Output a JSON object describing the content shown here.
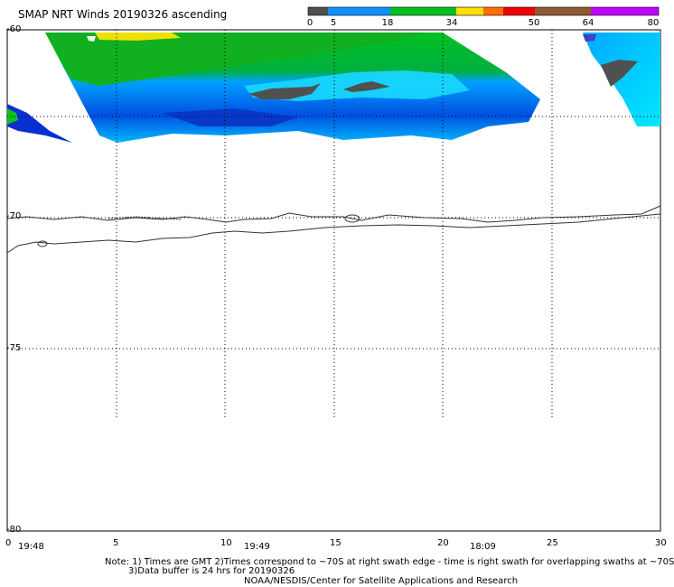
{
  "title": "SMAP NRT Winds 20190326 ascending",
  "scale": {
    "labels": [
      "0",
      "5",
      "18",
      "34",
      "50",
      "64",
      "80"
    ],
    "colors": [
      "#505050",
      "#707070",
      "#00a0ff",
      "#00d000",
      "#ffff00",
      "#ff6000",
      "#ff0000",
      "#806040",
      "#ff00ff",
      "#8000ff"
    ]
  },
  "lat_labels": [
    "-60",
    "-70",
    "-75",
    "-80"
  ],
  "lon_labels": [
    "0",
    "5",
    "10",
    "15",
    "20",
    "25",
    "30"
  ],
  "time_labels": [
    "19:48",
    "19:49",
    "18:09"
  ],
  "notes": {
    "line1": "Note: 1) Times are GMT 2)Times correspond to ~70S at right swath edge - time is right swath for overlapping swaths at ~70S",
    "line2": "3)Data buffer is 24 hrs for 20190326",
    "line3": "NOAA/NESDIS/Center for Satellite Applications and Research"
  }
}
